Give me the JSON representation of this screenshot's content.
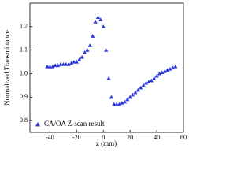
{
  "chart_data": {
    "type": "scatter",
    "xlabel": "z (mm)",
    "ylabel": "Normalized Transmittance",
    "xlim": [
      -55,
      60
    ],
    "ylim": [
      0.75,
      1.3
    ],
    "xticks": [
      -40,
      -20,
      0,
      20,
      40,
      60
    ],
    "yticks": [
      {
        "value": 0.8,
        "label": "0.8"
      },
      {
        "value": 0.9,
        "label": "0.9"
      },
      {
        "value": 1.0,
        "label": "1.0"
      },
      {
        "value": 1.1,
        "label": "1.1"
      },
      {
        "value": 1.2,
        "label": "1.2"
      }
    ],
    "legend": "lower left",
    "series": [
      {
        "name": "CA/OA Z-scan result",
        "color": "#2b3ad8",
        "x": [
          -42,
          -40,
          -38,
          -36,
          -34,
          -32,
          -30,
          -28,
          -26,
          -24,
          -22,
          -20,
          -18,
          -16,
          -14,
          -12,
          -10,
          -8,
          -6,
          -4,
          -2,
          0,
          2,
          4,
          6,
          8,
          10,
          12,
          14,
          16,
          18,
          20,
          22,
          24,
          26,
          28,
          30,
          32,
          34,
          36,
          38,
          40,
          42,
          44,
          46,
          48,
          50,
          52,
          54
        ],
        "values": [
          1.03,
          1.03,
          1.03,
          1.035,
          1.035,
          1.04,
          1.04,
          1.04,
          1.04,
          1.045,
          1.05,
          1.05,
          1.06,
          1.07,
          1.09,
          1.1,
          1.12,
          1.16,
          1.22,
          1.24,
          1.23,
          1.2,
          1.1,
          0.98,
          0.9,
          0.87,
          0.87,
          0.87,
          0.875,
          0.88,
          0.89,
          0.9,
          0.91,
          0.92,
          0.93,
          0.94,
          0.95,
          0.96,
          0.965,
          0.97,
          0.98,
          0.99,
          1.0,
          1.005,
          1.01,
          1.015,
          1.02,
          1.025,
          1.03
        ]
      }
    ]
  }
}
